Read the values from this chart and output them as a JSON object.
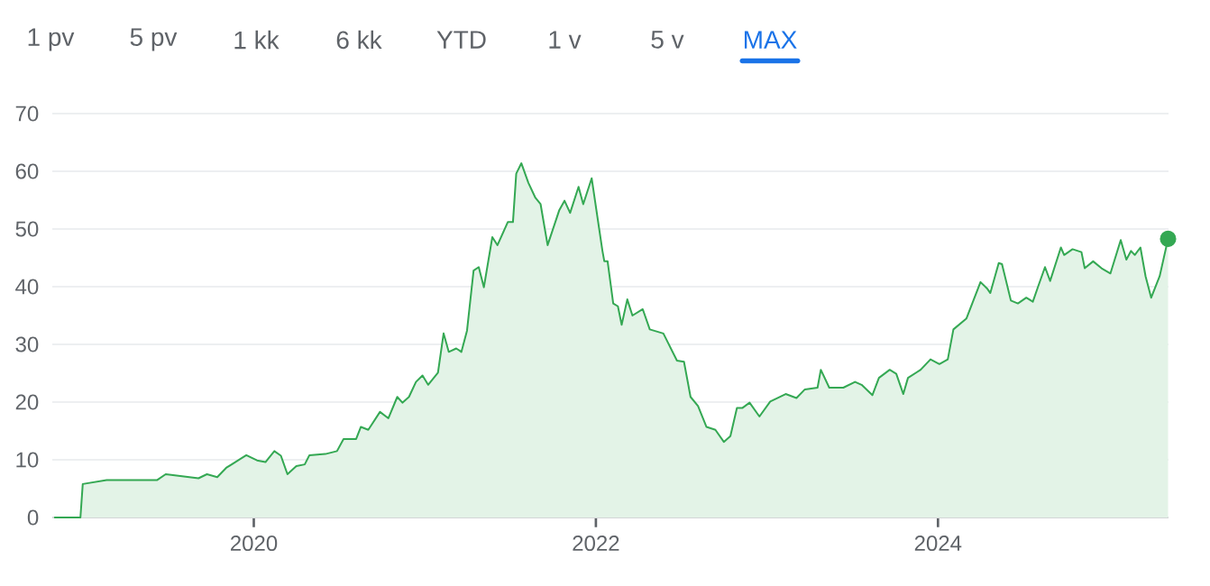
{
  "chart_data": {
    "type": "area",
    "annotations": [
      "1 pv",
      "5 pv",
      "1 kk",
      "6 kk",
      "YTD",
      "1 v",
      "5 v",
      "MAX"
    ],
    "xlim": [
      "2018-10-28",
      "2025-05-08"
    ],
    "xticks": [
      "2020",
      "2022",
      "2024"
    ],
    "ylim": [
      0,
      70
    ],
    "yticks": [
      0,
      10,
      20,
      30,
      40,
      50,
      60,
      70
    ],
    "grid": "y",
    "series": [
      {
        "color": "#34a853",
        "x": [
          "2018-11-01",
          "2018-12-27",
          "2019-01-01",
          "2019-02-21",
          "2019-06-09",
          "2019-06-27",
          "2019-09-05",
          "2019-09-23",
          "2019-10-15",
          "2019-11-03",
          "2019-12-16",
          "2020-01-08",
          "2020-01-26",
          "2020-02-14",
          "2020-02-28",
          "2020-03-13",
          "2020-04-01",
          "2020-04-19",
          "2020-04-29",
          "2020-06-02",
          "2020-06-27",
          "2020-07-11",
          "2020-08-07",
          "2020-08-17",
          "2020-09-02",
          "2020-09-27",
          "2020-10-15",
          "2020-11-03",
          "2020-11-14",
          "2020-11-28",
          "2020-12-13",
          "2020-12-27",
          "2021-01-08",
          "2021-01-29",
          "2021-02-10",
          "2021-02-21",
          "2021-03-09",
          "2021-03-20",
          "2021-04-01",
          "2021-04-15",
          "2021-04-26",
          "2021-05-07",
          "2021-05-25",
          "2021-06-05",
          "2021-06-27",
          "2021-07-08",
          "2021-07-15",
          "2021-07-26",
          "2021-08-10",
          "2021-08-25",
          "2021-09-05",
          "2021-09-20",
          "2021-10-15",
          "2021-10-26",
          "2021-11-07",
          "2021-11-25",
          "2021-12-05",
          "2021-12-23",
          "2022-01-15",
          "2022-01-19",
          "2022-01-26",
          "2022-02-07",
          "2022-02-17",
          "2022-02-25",
          "2022-03-09",
          "2022-03-20",
          "2022-04-11",
          "2022-04-26",
          "2022-05-25",
          "2022-06-23",
          "2022-07-08",
          "2022-07-22",
          "2022-08-07",
          "2022-08-25",
          "2022-09-13",
          "2022-10-01",
          "2022-10-15",
          "2022-10-29",
          "2022-11-10",
          "2022-11-25",
          "2022-12-16",
          "2023-01-08",
          "2023-02-10",
          "2023-03-05",
          "2023-03-23",
          "2023-04-19",
          "2023-04-26",
          "2023-05-14",
          "2023-06-13",
          "2023-07-08",
          "2023-07-22",
          "2023-08-14",
          "2023-08-28",
          "2023-09-20",
          "2023-10-04",
          "2023-10-19",
          "2023-10-29",
          "2023-11-25",
          "2023-12-16",
          "2024-01-04",
          "2024-01-22",
          "2024-02-03",
          "2024-03-02",
          "2024-04-01",
          "2024-04-15",
          "2024-04-22",
          "2024-05-10",
          "2024-05-17",
          "2024-06-05",
          "2024-06-20",
          "2024-07-08",
          "2024-07-22",
          "2024-08-03",
          "2024-08-17",
          "2024-08-28",
          "2024-09-20",
          "2024-09-27",
          "2024-10-15",
          "2024-11-03",
          "2024-11-10",
          "2024-11-28",
          "2024-12-16",
          "2025-01-04",
          "2025-01-26",
          "2025-02-07",
          "2025-02-17",
          "2025-02-25",
          "2025-03-09",
          "2025-03-20",
          "2025-04-01",
          "2025-04-19",
          "2025-05-07"
        ],
        "values": [
          0,
          0,
          5.8,
          6.5,
          6.5,
          7.5,
          6.8,
          7.5,
          7.0,
          8.6,
          10.8,
          9.9,
          9.6,
          11.5,
          10.7,
          7.5,
          8.9,
          9.2,
          10.8,
          11.0,
          11.5,
          13.6,
          13.6,
          15.7,
          15.2,
          18.3,
          17.2,
          20.9,
          19.9,
          20.9,
          23.5,
          24.6,
          23.0,
          25.1,
          31.9,
          28.7,
          29.3,
          28.7,
          32.4,
          42.8,
          43.4,
          39.9,
          48.6,
          47.2,
          51.2,
          51.2,
          59.6,
          61.4,
          58.0,
          55.4,
          54.3,
          47.2,
          53.3,
          54.9,
          52.8,
          57.3,
          54.3,
          58.8,
          46.2,
          44.4,
          44.4,
          37.1,
          36.6,
          33.4,
          37.8,
          35.0,
          36.1,
          32.6,
          31.9,
          27.2,
          27.0,
          20.9,
          19.3,
          15.7,
          15.2,
          13.1,
          14.1,
          19.0,
          19.0,
          19.9,
          17.5,
          20.1,
          21.4,
          20.7,
          22.2,
          22.5,
          25.6,
          22.5,
          22.5,
          23.5,
          23.0,
          21.2,
          24.2,
          25.6,
          24.9,
          21.4,
          24.2,
          25.6,
          27.4,
          26.6,
          27.4,
          32.6,
          34.5,
          40.8,
          39.7,
          38.9,
          44.1,
          43.9,
          37.6,
          37.1,
          38.1,
          37.4,
          40.2,
          43.4,
          41.0,
          46.8,
          45.5,
          46.5,
          46.0,
          43.2,
          44.4,
          43.2,
          42.3,
          48.1,
          44.7,
          46.2,
          45.5,
          46.8,
          41.8,
          38.1,
          41.8,
          48.3
        ]
      },
      {
        "type": "scatter",
        "color": "#34a853",
        "x": [
          "2025-05-07"
        ],
        "values": [
          48.3
        ]
      }
    ]
  }
}
